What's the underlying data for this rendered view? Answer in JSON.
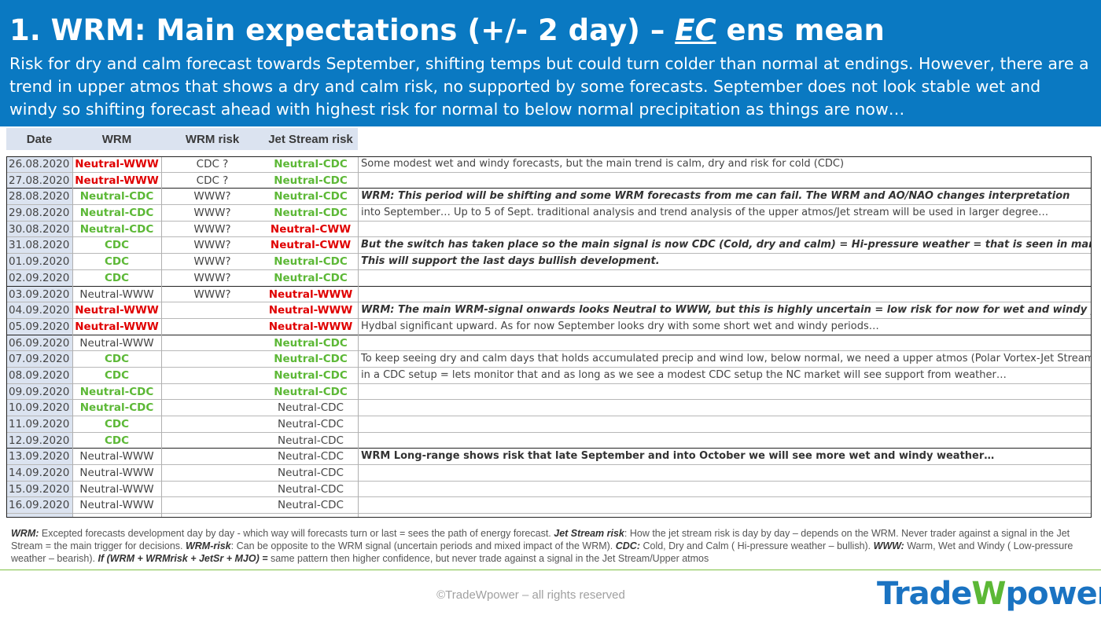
{
  "header": {
    "title_pre": "1. WRM: Main expectations (+/- 2 day) – ",
    "title_ec": "EC",
    "title_post": " ens mean",
    "subtitle": "Risk for dry and calm forecast towards September, shifting temps but could turn colder than normal at endings. However, there are a trend in upper atmos that shows a dry and calm risk, no supported by some forecasts. September does not look stable wet and windy so shifting forecast ahead with highest risk for normal to below normal precipitation as things are now…"
  },
  "columns": {
    "date": "Date",
    "wrm": "WRM",
    "wrm_risk": "WRM risk",
    "jet": "Jet Stream risk"
  },
  "colors": {
    "header_bg": "#0a79c2",
    "red": "#e00000",
    "green": "#5cb836",
    "logo_blue": "#1a73c2"
  },
  "rows": [
    {
      "date": "26.08.2020",
      "wrm": "Neutral-WWW",
      "wc": "red",
      "risk": "CDC ?",
      "jet": "Neutral-CDC",
      "jc": "green",
      "comment": "Some modest wet and windy forecasts, but the main trend is calm, dry and risk for cold (CDC)",
      "cs": ""
    },
    {
      "date": "27.08.2020",
      "wrm": "Neutral-WWW",
      "wc": "red",
      "risk": "CDC ?",
      "jet": "Neutral-CDC",
      "jc": "green",
      "comment": "",
      "cs": "",
      "end": true
    },
    {
      "date": "28.08.2020",
      "wrm": "Neutral-CDC",
      "wc": "green",
      "risk": "WWW?",
      "jet": "Neutral-CDC",
      "jc": "green",
      "comment": "WRM: This period will be shifting and some WRM forecasts from me can fail. The WRM and AO/NAO changes interpretation",
      "cs": "bi"
    },
    {
      "date": "29.08.2020",
      "wrm": "Neutral-CDC",
      "wc": "green",
      "risk": "WWW?",
      "jet": "Neutral-CDC",
      "jc": "green",
      "comment": "into September… Up to 5 of Sept.  traditional analysis and trend analysis of the upper atmos/Jet stream will be used in larger degree…",
      "cs": ""
    },
    {
      "date": "30.08.2020",
      "wrm": "Neutral-CDC",
      "wc": "green",
      "risk": "WWW?",
      "jet": "Neutral-CWW",
      "jc": "red",
      "comment": "",
      "cs": ""
    },
    {
      "date": "31.08.2020",
      "wrm": "CDC",
      "wc": "green",
      "risk": "WWW?",
      "jet": "Neutral-CWW",
      "jc": "red",
      "comment": "But the switch has taken place so the main signal is now CDC (Cold, dry and calm) = Hi-pressure weather = that is seen in many runs…",
      "cs": "bi"
    },
    {
      "date": "01.09.2020",
      "wrm": "CDC",
      "wc": "green",
      "risk": "WWW?",
      "jet": "Neutral-CDC",
      "jc": "green",
      "comment": "This will support the last days bullish development.",
      "cs": "bi"
    },
    {
      "date": "02.09.2020",
      "wrm": "CDC",
      "wc": "green",
      "risk": "WWW?",
      "jet": "Neutral-CDC",
      "jc": "green",
      "comment": "",
      "cs": "",
      "end": true
    },
    {
      "date": "03.09.2020",
      "wrm": "Neutral-WWW",
      "wc": "gray",
      "risk": "WWW?",
      "jet": "Neutral-WWW",
      "jc": "red",
      "comment": "",
      "cs": ""
    },
    {
      "date": "04.09.2020",
      "wrm": "Neutral-WWW",
      "wc": "red",
      "risk": "",
      "jet": "Neutral-WWW",
      "jc": "red",
      "comment": "WRM: The main WRM-signal onwards looks Neutral to WWW, but this is highly uncertain = low risk for now for wet and windy pushing",
      "cs": "bi"
    },
    {
      "date": "05.09.2020",
      "wrm": "Neutral-WWW",
      "wc": "red",
      "risk": "",
      "jet": "Neutral-WWW",
      "jc": "red",
      "comment": "Hydbal significant upward. As for now September looks dry with some short wet and windy periods…",
      "cs": "",
      "end": true
    },
    {
      "date": "06.09.2020",
      "wrm": "Neutral-WWW",
      "wc": "gray",
      "risk": "",
      "jet": "Neutral-CDC",
      "jc": "green",
      "comment": "",
      "cs": ""
    },
    {
      "date": "07.09.2020",
      "wrm": "CDC",
      "wc": "green",
      "risk": "",
      "jet": "Neutral-CDC",
      "jc": "green",
      "comment": "To keep seeing dry and calm days that holds accumulated precip and wind low, below normal, we need a upper atmos (Polar Vortex-Jet Stream)",
      "cs": ""
    },
    {
      "date": "08.09.2020",
      "wrm": "CDC",
      "wc": "green",
      "risk": "",
      "jet": "Neutral-CDC",
      "jc": "green",
      "comment": "in a CDC setup = lets monitor that and as long as we see a modest CDC setup the NC market will see support from weather…",
      "cs": ""
    },
    {
      "date": "09.09.2020",
      "wrm": "Neutral-CDC",
      "wc": "green",
      "risk": "",
      "jet": "Neutral-CDC",
      "jc": "green",
      "comment": "",
      "cs": ""
    },
    {
      "date": "10.09.2020",
      "wrm": "Neutral-CDC",
      "wc": "green",
      "risk": "",
      "jet": "Neutral-CDC",
      "jc": "gray",
      "comment": "",
      "cs": ""
    },
    {
      "date": "11.09.2020",
      "wrm": "CDC",
      "wc": "green",
      "risk": "",
      "jet": "Neutral-CDC",
      "jc": "gray",
      "comment": "",
      "cs": ""
    },
    {
      "date": "12.09.2020",
      "wrm": "CDC",
      "wc": "green",
      "risk": "",
      "jet": "Neutral-CDC",
      "jc": "gray",
      "comment": "",
      "cs": "",
      "end": true
    },
    {
      "date": "13.09.2020",
      "wrm": "Neutral-WWW",
      "wc": "gray",
      "risk": "",
      "jet": "Neutral-CDC",
      "jc": "gray",
      "comment": "WRM Long-range shows risk that late September and into October we will see more wet and windy weather…",
      "cs": "b"
    },
    {
      "date": "14.09.2020",
      "wrm": "Neutral-WWW",
      "wc": "gray",
      "risk": "",
      "jet": "Neutral-CDC",
      "jc": "gray",
      "comment": "",
      "cs": ""
    },
    {
      "date": "15.09.2020",
      "wrm": "Neutral-WWW",
      "wc": "gray",
      "risk": "",
      "jet": "Neutral-CDC",
      "jc": "gray",
      "comment": "",
      "cs": ""
    },
    {
      "date": "16.09.2020",
      "wrm": "Neutral-WWW",
      "wc": "gray",
      "risk": "",
      "jet": "Neutral-CDC",
      "jc": "gray",
      "comment": "",
      "cs": ""
    }
  ],
  "notes": {
    "k1": "WRM:",
    "t1": " Excepted forecasts development day by day - which way will forecasts turn or last = sees the path of energy forecast.  ",
    "k2": "Jet Stream risk",
    "t2": ": How the jet stream risk is day by day – depends on the WRM. Never trader against a signal in the Jet Stream = the main trigger for decisions. ",
    "k3": "WRM-risk",
    "t3": ": Can be opposite to the WRM signal (uncertain periods and mixed impact of the WRM). ",
    "k4": "CDC:",
    "t4": " Cold, Dry and Calm ( Hi-pressure weather – bullish). ",
    "k5": "WWW:",
    "t5": " Warm, Wet and Windy ( Low-pressure weather – bearish). ",
    "k6": "If (WRM + WRMrisk + JetSr + MJO) =",
    "t6": " same pattern then higher confidence, but never trade against a signal in the Jet Stream/Upper atmos"
  },
  "footer": {
    "copyright": "©TradeWpower – all rights reserved",
    "logo_a": "Trade",
    "logo_w": "W",
    "logo_b": "power"
  }
}
